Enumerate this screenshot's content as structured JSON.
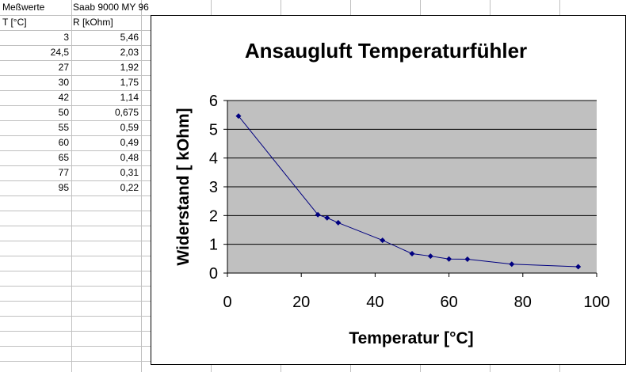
{
  "spreadsheet": {
    "header_row": [
      "Meßwerte",
      "Saab 9000 MY 96"
    ],
    "column_headers": [
      "T [°C]",
      "R [kOhm]"
    ],
    "rows": [
      [
        "3",
        "5,46"
      ],
      [
        "24,5",
        "2,03"
      ],
      [
        "27",
        "1,92"
      ],
      [
        "30",
        "1,75"
      ],
      [
        "42",
        "1,14"
      ],
      [
        "50",
        "0,675"
      ],
      [
        "55",
        "0,59"
      ],
      [
        "60",
        "0,49"
      ],
      [
        "65",
        "0,48"
      ],
      [
        "77",
        "0,31"
      ],
      [
        "95",
        "0,22"
      ]
    ]
  },
  "chart_data": {
    "type": "scatter",
    "title": "Ansaugluft Temperaturfühler",
    "xlabel": "Temperatur [°C]",
    "ylabel": "Widerstand [ kOhm]",
    "x": [
      3,
      24.5,
      27,
      30,
      42,
      50,
      55,
      60,
      65,
      77,
      95
    ],
    "y": [
      5.46,
      2.03,
      1.92,
      1.75,
      1.14,
      0.675,
      0.59,
      0.49,
      0.48,
      0.31,
      0.22
    ],
    "xlim": [
      0,
      100
    ],
    "ylim": [
      0,
      6
    ],
    "xticks": [
      "0",
      "20",
      "40",
      "60",
      "80",
      "100"
    ],
    "yticks": [
      "0",
      "1",
      "2",
      "3",
      "4",
      "5",
      "6"
    ],
    "grid": "horizontal",
    "plot_background": "#c0c0c0",
    "series_color": "#000080",
    "line_style": "smoothed line with diamond markers",
    "legend": "none"
  }
}
